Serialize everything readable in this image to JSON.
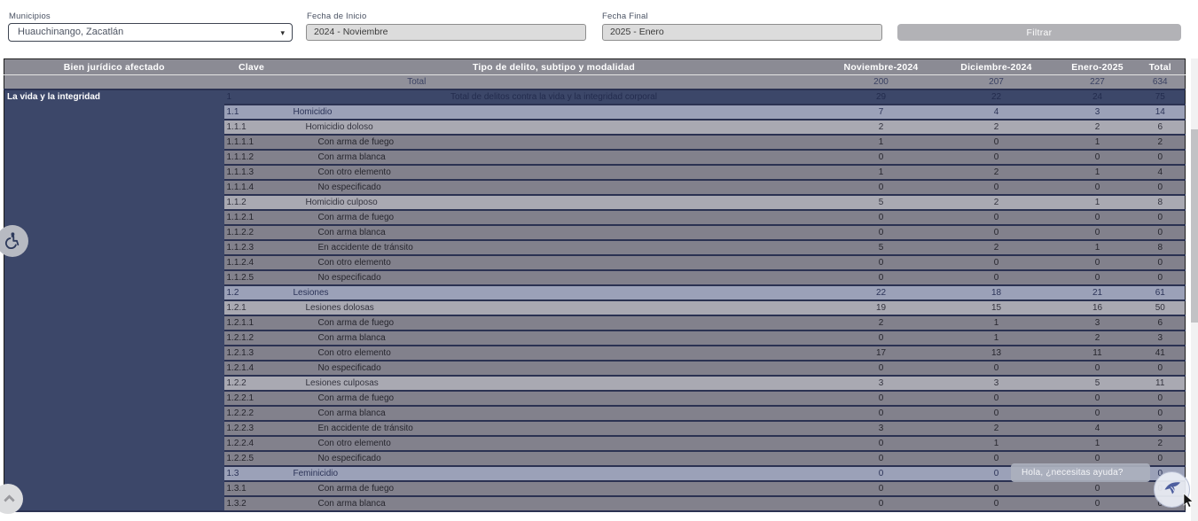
{
  "filters": {
    "municipios": {
      "label": "Municipios",
      "value": "Huauchinango, Zacatlán"
    },
    "fecha_inicio": {
      "label": "Fecha de Inicio",
      "value": "2024 - Noviembre"
    },
    "fecha_final": {
      "label": "Fecha Final",
      "value": "2025 - Enero"
    },
    "filtrar_label": "Filtrar"
  },
  "table": {
    "columns": {
      "bien": "Bien jurídico afectado",
      "clave": "Clave",
      "tipo": "Tipo de delito, subtipo y modalidad",
      "m1": "Noviembre-2024",
      "m2": "Diciembre-2024",
      "m3": "Enero-2025",
      "total": "Total"
    },
    "total_row": {
      "label": "Total",
      "v1": "200",
      "v2": "207",
      "v3": "227",
      "vt": "634"
    },
    "bien_juridico": "La vida y la integridad",
    "rows": [
      {
        "clave": "1",
        "tipo": "Total de delitos contra la vida y la integridad corporal",
        "level": 1,
        "values": [
          "29",
          "22",
          "24",
          "75"
        ]
      },
      {
        "clave": "1.1",
        "tipo": "Homicidio",
        "level": 2,
        "values": [
          "7",
          "4",
          "3",
          "14"
        ]
      },
      {
        "clave": "1.1.1",
        "tipo": "Homicidio doloso",
        "level": 3,
        "values": [
          "2",
          "2",
          "2",
          "6"
        ]
      },
      {
        "clave": "1.1.1.1",
        "tipo": "Con arma de fuego",
        "level": 4,
        "values": [
          "1",
          "0",
          "1",
          "2"
        ]
      },
      {
        "clave": "1.1.1.2",
        "tipo": "Con arma blanca",
        "level": 4,
        "values": [
          "0",
          "0",
          "0",
          "0"
        ]
      },
      {
        "clave": "1.1.1.3",
        "tipo": "Con otro elemento",
        "level": 4,
        "values": [
          "1",
          "2",
          "1",
          "4"
        ]
      },
      {
        "clave": "1.1.1.4",
        "tipo": "No especificado",
        "level": 4,
        "values": [
          "0",
          "0",
          "0",
          "0"
        ]
      },
      {
        "clave": "1.1.2",
        "tipo": "Homicidio culposo",
        "level": 3,
        "values": [
          "5",
          "2",
          "1",
          "8"
        ]
      },
      {
        "clave": "1.1.2.1",
        "tipo": "Con arma de fuego",
        "level": 4,
        "values": [
          "0",
          "0",
          "0",
          "0"
        ]
      },
      {
        "clave": "1.1.2.2",
        "tipo": "Con arma blanca",
        "level": 4,
        "values": [
          "0",
          "0",
          "0",
          "0"
        ]
      },
      {
        "clave": "1.1.2.3",
        "tipo": "En accidente de tránsito",
        "level": 4,
        "values": [
          "5",
          "2",
          "1",
          "8"
        ]
      },
      {
        "clave": "1.1.2.4",
        "tipo": "Con otro elemento",
        "level": 4,
        "values": [
          "0",
          "0",
          "0",
          "0"
        ]
      },
      {
        "clave": "1.1.2.5",
        "tipo": "No especificado",
        "level": 4,
        "values": [
          "0",
          "0",
          "0",
          "0"
        ]
      },
      {
        "clave": "1.2",
        "tipo": "Lesiones",
        "level": 2,
        "values": [
          "22",
          "18",
          "21",
          "61"
        ]
      },
      {
        "clave": "1.2.1",
        "tipo": "Lesiones dolosas",
        "level": 3,
        "values": [
          "19",
          "15",
          "16",
          "50"
        ]
      },
      {
        "clave": "1.2.1.1",
        "tipo": "Con arma de fuego",
        "level": 4,
        "values": [
          "2",
          "1",
          "3",
          "6"
        ]
      },
      {
        "clave": "1.2.1.2",
        "tipo": "Con arma blanca",
        "level": 4,
        "values": [
          "0",
          "1",
          "2",
          "3"
        ]
      },
      {
        "clave": "1.2.1.3",
        "tipo": "Con otro elemento",
        "level": 4,
        "values": [
          "17",
          "13",
          "11",
          "41"
        ]
      },
      {
        "clave": "1.2.1.4",
        "tipo": "No especificado",
        "level": 4,
        "values": [
          "0",
          "0",
          "0",
          "0"
        ]
      },
      {
        "clave": "1.2.2",
        "tipo": "Lesiones culposas",
        "level": 3,
        "values": [
          "3",
          "3",
          "5",
          "11"
        ]
      },
      {
        "clave": "1.2.2.1",
        "tipo": "Con arma de fuego",
        "level": 4,
        "values": [
          "0",
          "0",
          "0",
          "0"
        ]
      },
      {
        "clave": "1.2.2.2",
        "tipo": "Con arma blanca",
        "level": 4,
        "values": [
          "0",
          "0",
          "0",
          "0"
        ]
      },
      {
        "clave": "1.2.2.3",
        "tipo": "En accidente de tránsito",
        "level": 4,
        "values": [
          "3",
          "2",
          "4",
          "9"
        ]
      },
      {
        "clave": "1.2.2.4",
        "tipo": "Con otro elemento",
        "level": 4,
        "values": [
          "0",
          "1",
          "1",
          "2"
        ]
      },
      {
        "clave": "1.2.2.5",
        "tipo": "No especificado",
        "level": 4,
        "values": [
          "0",
          "0",
          "0",
          "0"
        ]
      },
      {
        "clave": "1.3",
        "tipo": "Feminicidio",
        "level": 2,
        "values": [
          "0",
          "0",
          "0",
          "0"
        ]
      },
      {
        "clave": "1.3.1",
        "tipo": "Con arma de fuego",
        "level": 4,
        "values": [
          "0",
          "0",
          "0",
          "0"
        ]
      },
      {
        "clave": "1.3.2",
        "tipo": "Con arma blanca",
        "level": 4,
        "values": [
          "0",
          "0",
          "0",
          "0"
        ]
      }
    ]
  },
  "chat": {
    "tooltip": "Hola, ¿necesitas ayuda?"
  },
  "icons": {
    "dropdown_caret": "▾",
    "accessibility": "wheelchair",
    "scroll_top": "chevron-up",
    "chat": "hummingbird"
  },
  "colors": {
    "header_gray": "#8b8b94",
    "total_row_gray": "#90909a",
    "navy_accent": "#3c4769",
    "level2_bluegray": "#9ba1b8",
    "level3_lightgray": "#a9a9b2",
    "level4_gray": "#82818c",
    "filtrar_gray": "#b2b2b6"
  }
}
